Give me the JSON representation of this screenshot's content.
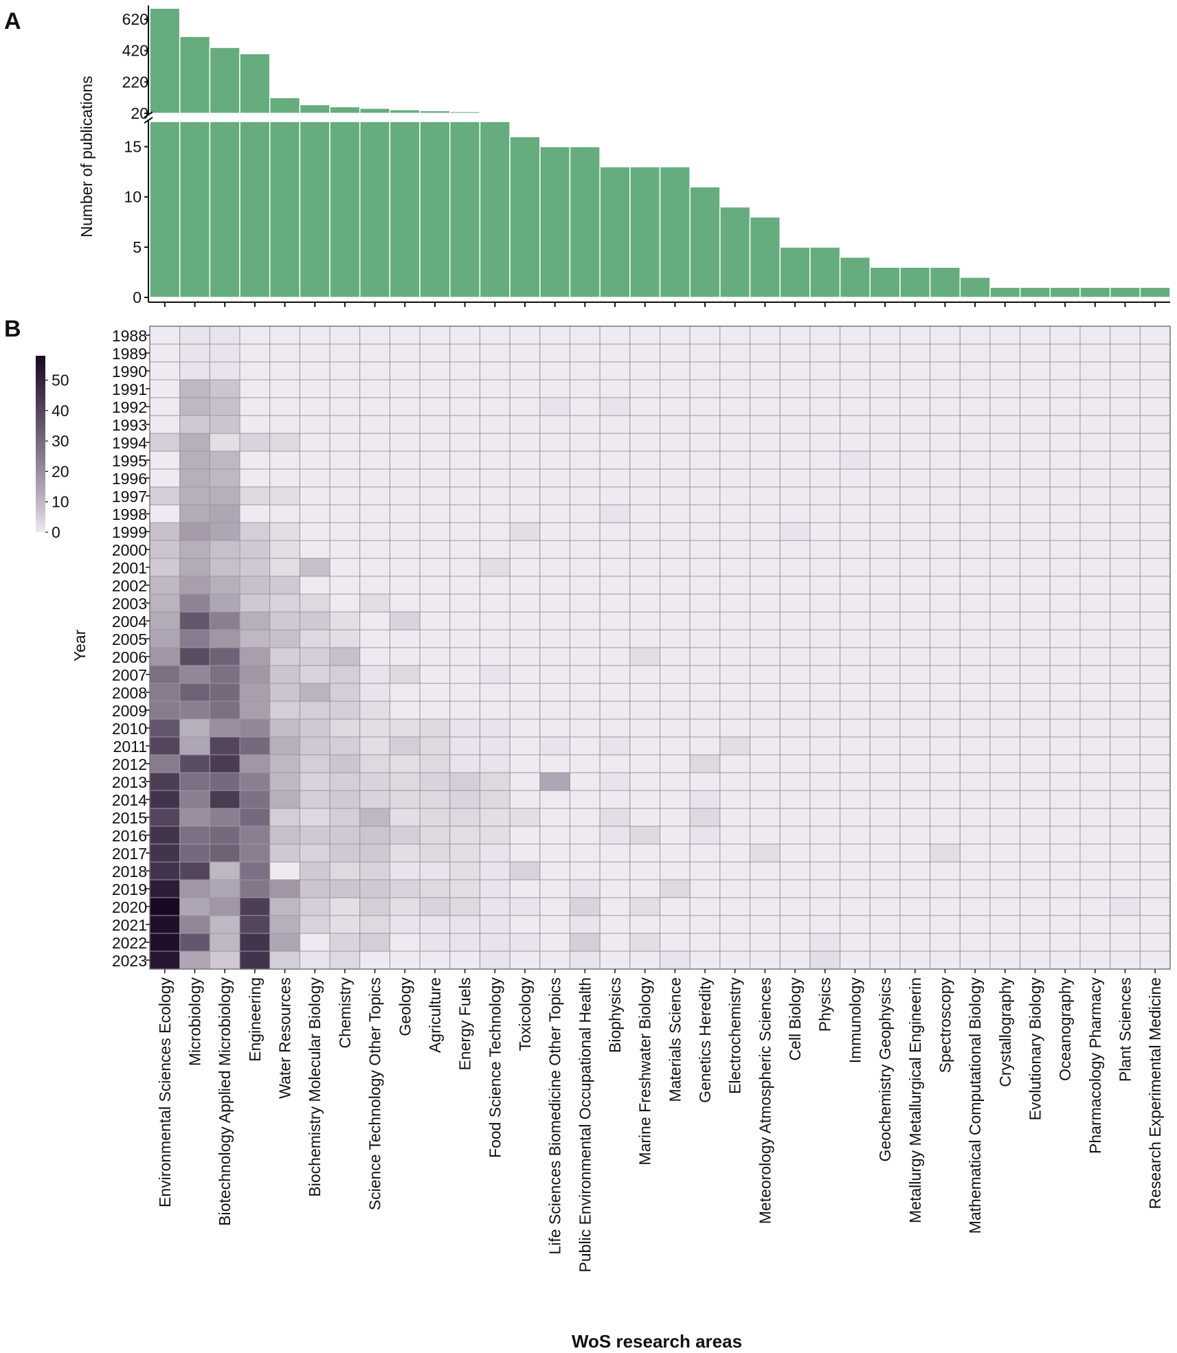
{
  "chart_data": [
    {
      "type": "bar",
      "panel_label": "A",
      "ylabel": "Number of publications",
      "axis_break": true,
      "upper_ticks": [
        620,
        420,
        220,
        20
      ],
      "lower_ticks": [
        0,
        5,
        10,
        15
      ],
      "upper_ylim": [
        20,
        690
      ],
      "lower_ylim": [
        0,
        17.5
      ],
      "categories": [
        "Environmental Sciences Ecology",
        "Microbiology",
        "Biotechnology Applied Microbiology",
        "Engineering",
        "Water Resources",
        "Biochemistry Molecular Biology",
        "Chemistry",
        "Science Technology Other Topics",
        "Geology",
        "Agriculture",
        "Energy Fuels",
        "Food Science Technology",
        "Toxicology",
        "Life Sciences Biomedicine Other Topics",
        "Public Environmental Occupational Health",
        "Biophysics",
        "Marine Freshwater Biology",
        "Materials Science",
        "Genetics Heredity",
        "Electrochemistry",
        "Meteorology Atmospheric Sciences",
        "Cell Biology",
        "Physics",
        "Immunology",
        "Geochemistry Geophysics",
        "Metallurgy Metallurgical Engineerin",
        "Spectroscopy",
        "Mathematical Computational Biology",
        "Crystallography",
        "Evolutionary Biology",
        "Oceanography",
        "Pharmacology Pharmacy",
        "Plant Sciences",
        "Research Experimental Medicine"
      ],
      "values": [
        690,
        510,
        440,
        400,
        120,
        75,
        62,
        52,
        43,
        37,
        31,
        26,
        16,
        15,
        15,
        13,
        13,
        13,
        11,
        9,
        8,
        5,
        5,
        4,
        3,
        3,
        3,
        2,
        1,
        1,
        1,
        1,
        1,
        1
      ],
      "bar_color": "#66ac7f"
    },
    {
      "type": "heatmap",
      "panel_label": "B",
      "ylabel": "Year",
      "xlabel": "WoS research areas",
      "years": [
        "1988",
        "1989",
        "1990",
        "1991",
        "1992",
        "1993",
        "1994",
        "1995",
        "1996",
        "1997",
        "1998",
        "1999",
        "2000",
        "2001",
        "2002",
        "2003",
        "2004",
        "2005",
        "2006",
        "2007",
        "2008",
        "2009",
        "2010",
        "2011",
        "2012",
        "2013",
        "2014",
        "2015",
        "2016",
        "2017",
        "2018",
        "2019",
        "2020",
        "2021",
        "2022",
        "2023"
      ],
      "colorbar": {
        "ticks": [
          0,
          10,
          20,
          30,
          40,
          50
        ],
        "vmin": 0,
        "vmax": 58,
        "low_color": "#efeaf2",
        "high_color": "#1a0825"
      },
      "value_rows_by_category": [
        [
          0,
          0,
          0,
          0,
          0,
          0,
          5,
          0,
          0,
          5,
          0,
          8,
          7,
          6,
          10,
          11,
          13,
          14,
          18,
          28,
          25,
          25,
          35,
          40,
          25,
          42,
          45,
          40,
          45,
          45,
          45,
          52,
          58,
          56,
          56,
          54
        ],
        [
          1,
          1,
          1,
          10,
          10,
          6,
          12,
          12,
          12,
          12,
          13,
          17,
          12,
          13,
          16,
          23,
          35,
          25,
          38,
          22,
          32,
          24,
          12,
          14,
          38,
          28,
          24,
          20,
          28,
          30,
          40,
          18,
          14,
          22,
          35,
          14
        ],
        [
          1,
          1,
          1,
          7,
          8,
          7,
          2,
          10,
          10,
          12,
          14,
          14,
          8,
          8,
          12,
          14,
          24,
          18,
          32,
          28,
          30,
          28,
          20,
          40,
          43,
          30,
          43,
          24,
          30,
          32,
          10,
          14,
          18,
          10,
          10,
          6
        ],
        [
          0,
          0,
          0,
          0,
          0,
          0,
          4,
          0,
          0,
          3,
          0,
          5,
          6,
          6,
          8,
          6,
          12,
          10,
          16,
          18,
          16,
          16,
          22,
          30,
          18,
          24,
          28,
          30,
          24,
          24,
          28,
          26,
          42,
          40,
          45,
          45
        ],
        [
          0,
          0,
          0,
          0,
          0,
          0,
          3,
          0,
          0,
          2,
          0,
          2,
          2,
          2,
          6,
          4,
          6,
          8,
          5,
          7,
          7,
          5,
          9,
          12,
          10,
          10,
          12,
          5,
          8,
          6,
          0,
          18,
          10,
          12,
          14,
          5
        ],
        [
          0,
          0,
          0,
          0,
          0,
          0,
          0,
          0,
          0,
          0,
          0,
          0,
          0,
          8,
          0,
          3,
          6,
          3,
          5,
          4,
          11,
          5,
          6,
          6,
          5,
          4,
          5,
          3,
          6,
          4,
          6,
          7,
          5,
          4,
          0,
          1
        ],
        [
          0,
          0,
          0,
          0,
          0,
          0,
          0,
          0,
          0,
          0,
          0,
          0,
          0,
          0,
          0,
          0,
          2,
          2,
          8,
          5,
          5,
          5,
          3,
          5,
          7,
          5,
          6,
          5,
          6,
          6,
          3,
          7,
          2,
          2,
          4,
          3
        ],
        [
          0,
          0,
          0,
          0,
          0,
          0,
          0,
          0,
          0,
          0,
          0,
          0,
          0,
          0,
          0,
          2,
          0,
          0,
          0,
          1,
          1,
          2,
          2,
          2,
          3,
          4,
          4,
          10,
          7,
          6,
          4,
          6,
          5,
          3,
          5,
          0
        ],
        [
          0,
          0,
          0,
          0,
          0,
          0,
          0,
          0,
          0,
          0,
          0,
          0,
          0,
          0,
          0,
          0,
          4,
          0,
          0,
          3,
          0,
          0,
          2,
          5,
          2,
          3,
          3,
          2,
          5,
          2,
          1,
          4,
          2,
          1,
          0,
          0
        ],
        [
          0,
          0,
          0,
          0,
          0,
          0,
          0,
          0,
          0,
          0,
          0,
          0,
          0,
          0,
          0,
          0,
          0,
          0,
          0,
          0,
          0,
          0,
          3,
          3,
          3,
          4,
          3,
          3,
          3,
          3,
          1,
          3,
          4,
          1,
          1,
          0
        ],
        [
          0,
          0,
          0,
          0,
          0,
          0,
          0,
          0,
          0,
          0,
          0,
          0,
          0,
          0,
          0,
          0,
          0,
          0,
          0,
          0,
          0,
          0,
          1,
          1,
          1,
          5,
          4,
          3,
          2,
          2,
          2,
          2,
          3,
          1,
          1,
          0
        ],
        [
          0,
          0,
          0,
          0,
          0,
          0,
          0,
          0,
          0,
          0,
          0,
          0,
          0,
          2,
          0,
          0,
          0,
          0,
          0,
          1,
          0,
          0,
          1,
          1,
          1,
          3,
          3,
          2,
          2,
          1,
          1,
          1,
          1,
          1,
          1,
          1
        ],
        [
          0,
          0,
          0,
          0,
          0,
          0,
          0,
          0,
          0,
          0,
          0,
          2,
          0,
          0,
          0,
          0,
          0,
          0,
          0,
          0,
          0,
          0,
          0,
          0,
          0,
          0,
          0,
          2,
          0,
          0,
          4,
          0,
          1,
          0,
          1,
          0
        ],
        [
          0,
          0,
          0,
          0,
          1,
          0,
          0,
          0,
          0,
          0,
          0,
          0,
          0,
          0,
          0,
          0,
          0,
          0,
          0,
          0,
          0,
          0,
          0,
          1,
          0,
          14,
          0,
          0,
          0,
          0,
          0,
          0,
          0,
          0,
          0,
          0
        ],
        [
          0,
          0,
          0,
          0,
          0,
          0,
          0,
          0,
          0,
          0,
          0,
          0,
          0,
          0,
          0,
          0,
          0,
          0,
          0,
          0,
          0,
          0,
          0,
          0,
          0,
          0,
          0,
          0,
          0,
          0,
          0,
          1,
          4,
          1,
          5,
          1
        ],
        [
          0,
          0,
          0,
          0,
          1,
          0,
          0,
          0,
          0,
          0,
          1,
          0,
          0,
          0,
          0,
          0,
          0,
          0,
          0,
          0,
          0,
          0,
          0,
          1,
          0,
          1,
          0,
          2,
          1,
          0,
          0,
          0,
          0,
          0,
          0,
          0
        ],
        [
          0,
          0,
          0,
          0,
          0,
          0,
          0,
          0,
          0,
          0,
          0,
          0,
          0,
          0,
          0,
          0,
          0,
          0,
          2,
          0,
          0,
          0,
          0,
          0,
          0,
          0,
          0,
          0,
          3,
          0,
          0,
          0,
          2,
          0,
          2,
          0
        ],
        [
          0,
          0,
          0,
          0,
          0,
          0,
          0,
          0,
          0,
          0,
          0,
          0,
          0,
          0,
          0,
          0,
          0,
          0,
          0,
          0,
          0,
          0,
          0,
          0,
          0,
          0,
          0,
          0,
          0,
          0,
          0,
          3,
          0,
          0,
          0,
          1
        ],
        [
          0,
          0,
          0,
          0,
          0,
          0,
          0,
          0,
          0,
          0,
          0,
          0,
          0,
          0,
          0,
          0,
          0,
          0,
          0,
          0,
          0,
          0,
          0,
          0,
          3,
          0,
          1,
          3,
          1,
          0,
          0,
          0,
          0,
          0,
          0,
          0
        ],
        [
          0,
          0,
          0,
          0,
          0,
          0,
          0,
          0,
          0,
          0,
          0,
          0,
          0,
          0,
          0,
          0,
          0,
          0,
          0,
          0,
          0,
          0,
          0,
          2,
          0,
          0,
          0,
          0,
          0,
          0,
          0,
          0,
          0,
          0,
          0,
          0
        ],
        [
          0,
          0,
          0,
          0,
          0,
          0,
          0,
          0,
          0,
          0,
          0,
          0,
          0,
          0,
          0,
          0,
          0,
          0,
          0,
          0,
          0,
          0,
          0,
          0,
          0,
          0,
          0,
          0,
          0,
          2,
          0,
          0,
          0,
          0,
          0,
          0
        ],
        [
          0,
          0,
          0,
          0,
          0,
          0,
          0,
          0,
          0,
          0,
          0,
          1,
          0,
          0,
          0,
          0,
          0,
          0,
          0,
          0,
          0,
          0,
          0,
          0,
          0,
          0,
          0,
          0,
          0,
          0,
          0,
          0,
          0,
          0,
          0,
          0
        ],
        [
          0,
          0,
          0,
          0,
          0,
          0,
          0,
          0,
          0,
          0,
          0,
          0,
          0,
          0,
          0,
          0,
          0,
          0,
          0,
          0,
          0,
          0,
          0,
          0,
          0,
          0,
          0,
          0,
          0,
          0,
          0,
          0,
          0,
          0,
          1,
          2
        ],
        [
          0,
          0,
          0,
          0,
          0,
          0,
          0,
          1,
          0,
          0,
          0,
          0,
          0,
          0,
          0,
          0,
          0,
          0,
          0,
          0,
          0,
          0,
          0,
          0,
          0,
          0,
          0,
          0,
          0,
          0,
          0,
          0,
          0,
          0,
          0,
          0
        ],
        [
          0,
          0,
          0,
          0,
          0,
          0,
          0,
          0,
          0,
          0,
          0,
          0,
          0,
          0,
          0,
          0,
          0,
          0,
          0,
          0,
          0,
          0,
          0,
          0,
          0,
          0,
          0,
          0,
          0,
          0,
          0,
          0,
          0,
          0,
          0,
          0
        ],
        [
          0,
          0,
          0,
          0,
          0,
          0,
          0,
          0,
          0,
          0,
          0,
          0,
          0,
          0,
          0,
          0,
          0,
          0,
          0,
          0,
          0,
          0,
          0,
          0,
          0,
          0,
          0,
          0,
          0,
          0,
          0,
          0,
          0,
          0,
          0,
          0
        ],
        [
          0,
          0,
          0,
          0,
          0,
          0,
          0,
          0,
          0,
          0,
          0,
          0,
          0,
          0,
          0,
          0,
          0,
          0,
          0,
          0,
          0,
          0,
          0,
          0,
          0,
          0,
          0,
          0,
          0,
          2,
          0,
          0,
          0,
          0,
          0,
          0
        ],
        [
          0,
          0,
          0,
          0,
          0,
          0,
          0,
          0,
          0,
          0,
          0,
          0,
          0,
          0,
          0,
          0,
          0,
          0,
          0,
          0,
          0,
          0,
          0,
          0,
          0,
          0,
          0,
          0,
          0,
          0,
          0,
          0,
          0,
          0,
          0,
          0
        ],
        [
          0,
          0,
          0,
          0,
          0,
          0,
          0,
          0,
          0,
          0,
          0,
          0,
          0,
          0,
          0,
          0,
          0,
          0,
          0,
          0,
          0,
          0,
          0,
          0,
          0,
          0,
          0,
          0,
          0,
          0,
          0,
          0,
          0,
          0,
          0,
          0
        ],
        [
          0,
          0,
          0,
          0,
          0,
          0,
          0,
          0,
          0,
          0,
          0,
          0,
          0,
          0,
          0,
          0,
          0,
          0,
          0,
          0,
          0,
          0,
          0,
          0,
          0,
          0,
          0,
          0,
          0,
          0,
          0,
          0,
          0,
          0,
          0,
          0
        ],
        [
          0,
          0,
          0,
          0,
          0,
          0,
          0,
          0,
          0,
          0,
          0,
          0,
          0,
          0,
          0,
          0,
          0,
          0,
          0,
          0,
          0,
          0,
          0,
          0,
          0,
          0,
          0,
          0,
          0,
          0,
          0,
          0,
          0,
          0,
          0,
          0
        ],
        [
          0,
          0,
          0,
          0,
          0,
          0,
          0,
          0,
          0,
          0,
          0,
          0,
          0,
          0,
          0,
          0,
          0,
          0,
          0,
          0,
          0,
          0,
          0,
          0,
          0,
          0,
          0,
          0,
          0,
          0,
          0,
          0,
          0,
          0,
          0,
          0
        ],
        [
          0,
          0,
          0,
          0,
          0,
          0,
          0,
          0,
          0,
          0,
          0,
          0,
          0,
          0,
          0,
          0,
          0,
          0,
          0,
          0,
          0,
          0,
          0,
          0,
          0,
          0,
          0,
          0,
          0,
          0,
          0,
          0,
          1,
          0,
          0,
          0
        ],
        [
          0,
          0,
          0,
          0,
          0,
          0,
          0,
          0,
          0,
          0,
          0,
          0,
          0,
          0,
          0,
          0,
          0,
          0,
          0,
          0,
          0,
          0,
          0,
          0,
          0,
          0,
          0,
          0,
          0,
          0,
          0,
          0,
          0,
          0,
          0,
          0
        ]
      ]
    }
  ]
}
